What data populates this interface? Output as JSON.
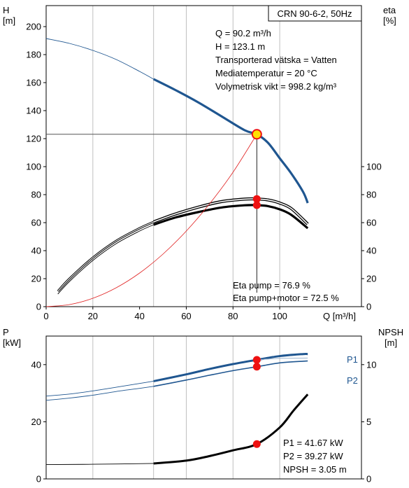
{
  "colors": {
    "head_curve": "#1f5690",
    "p_curves": "#1f5690",
    "eta_curves": "#000000",
    "power_curve_red": "#e02020",
    "duty_point_fill": "#ffe000",
    "marker_red": "#ee1111",
    "grid": "#bfbfbf",
    "frame": "#000000"
  },
  "chart_data": [
    {
      "type": "line",
      "panel": "top",
      "title_box": "CRN 90-6-2, 50Hz",
      "ylabel_left": "H",
      "ylabel_left_unit": "[m]",
      "ylabel_right": "eta",
      "ylabel_right_unit": "[%]",
      "xlabel": "Q [m³/h]",
      "xlim": [
        0,
        135
      ],
      "ylim_left": [
        0,
        215
      ],
      "ylim_right": [
        0,
        215
      ],
      "x_ticks": [
        0,
        20,
        40,
        60,
        80,
        100
      ],
      "y_ticks_left": [
        0,
        20,
        40,
        60,
        80,
        100,
        120,
        140,
        160,
        180,
        200
      ],
      "y_ticks_right": [
        0,
        20,
        40,
        60,
        80,
        100
      ],
      "grid": "vertical",
      "info_lines": [
        "Q = 90.2 m³/h",
        "H = 123.1 m",
        "Transporterad vätska = Vatten",
        "Mediatemperatur = 20 °C",
        "Volymetrisk vikt = 998.2 kg/m³"
      ],
      "eta_lines": [
        "Eta pump = 76.9 %",
        "Eta pump+motor = 72.5 %"
      ],
      "duty_point": {
        "x": 90.2,
        "y": 123.1
      },
      "eta_markers": [
        76.9,
        72.5
      ],
      "series": [
        {
          "role": "head_thin",
          "x": [
            0,
            10,
            20,
            30,
            40,
            46
          ],
          "y": [
            191.5,
            188,
            183,
            176.5,
            168,
            162.5
          ]
        },
        {
          "role": "head_thick",
          "x": [
            46,
            55,
            65,
            75,
            85,
            90.2,
            95,
            100,
            105,
            110,
            112
          ],
          "y": [
            162.5,
            155,
            146,
            136,
            126,
            123.1,
            117,
            106,
            95,
            82,
            74
          ]
        },
        {
          "role": "eta_pump_thin",
          "x": [
            5,
            10,
            20,
            30,
            40,
            46
          ],
          "y": [
            11,
            20,
            35,
            47,
            56,
            60.5
          ]
        },
        {
          "role": "eta_pump_thick",
          "x": [
            46,
            55,
            65,
            75,
            85,
            90.2,
            95,
            100,
            105,
            112
          ],
          "y": [
            60.5,
            66,
            71,
            75,
            76.8,
            76.9,
            76.2,
            74,
            70,
            59
          ]
        },
        {
          "role": "eta_total_thin",
          "x": [
            5,
            10,
            20,
            30,
            40,
            46
          ],
          "y": [
            9,
            18,
            33,
            45,
            54,
            58.5
          ]
        },
        {
          "role": "eta_total_thick",
          "x": [
            46,
            55,
            65,
            75,
            85,
            90.2,
            95,
            100,
            105,
            112
          ],
          "y": [
            58.5,
            63.5,
            67.5,
            70.8,
            72.4,
            72.5,
            71.8,
            69.5,
            65.5,
            56
          ]
        },
        {
          "role": "system_curve",
          "x": [
            0,
            10,
            20,
            30,
            40,
            50,
            60,
            70,
            80,
            90.2
          ],
          "y": [
            0,
            1.5,
            6,
            13.5,
            24,
            37.5,
            54,
            73.5,
            96,
            123.1
          ]
        }
      ]
    },
    {
      "type": "line",
      "panel": "bottom",
      "ylabel_left": "P",
      "ylabel_left_unit": "[kW]",
      "ylabel_right": "NPSH",
      "ylabel_right_unit": "[m]",
      "xlim": [
        0,
        135
      ],
      "ylim_left": [
        0,
        50
      ],
      "ylim_right": [
        0,
        12.5
      ],
      "y_ticks_left": [
        0,
        20,
        40
      ],
      "y_ticks_right": [
        0,
        5,
        10
      ],
      "grid": "vertical",
      "info_lines": [
        "P1 = 41.67 kW",
        "P2 = 39.27 kW",
        "NPSH = 3.05 m"
      ],
      "curve_labels": [
        "P1",
        "P2"
      ],
      "markers": {
        "p1": 41.67,
        "p2": 39.27,
        "npsh": 3.05
      },
      "series": [
        {
          "name": "P1",
          "role": "p1_thin",
          "x": [
            0,
            10,
            20,
            30,
            40,
            46
          ],
          "y": [
            29,
            29.7,
            30.8,
            32.1,
            33.4,
            34.2
          ]
        },
        {
          "name": "P1",
          "role": "p1_thick",
          "x": [
            46,
            60,
            70,
            80,
            90.2,
            100,
            110,
            112
          ],
          "y": [
            34.2,
            36.6,
            38.5,
            40.2,
            41.67,
            43,
            43.7,
            43.7
          ]
        },
        {
          "name": "P2",
          "role": "p2_thin",
          "x": [
            0,
            10,
            20,
            30,
            40,
            46
          ],
          "y": [
            27.5,
            28.3,
            29.3,
            30.6,
            31.7,
            32.4
          ]
        },
        {
          "name": "P2",
          "role": "p2_thick",
          "x": [
            46,
            60,
            70,
            80,
            90.2,
            100,
            110,
            112
          ],
          "y": [
            32.4,
            34.6,
            36.3,
            37.9,
            39.27,
            40.6,
            41.2,
            41.3
          ]
        },
        {
          "name": "P1",
          "role": "p1_ext",
          "x": [
            90.2,
            100,
            112
          ],
          "y": [
            41.67,
            42.2,
            42.3
          ]
        },
        {
          "role": "npsh_thin",
          "x": [
            0,
            20,
            46
          ],
          "y": [
            1.25,
            1.28,
            1.35
          ]
        },
        {
          "role": "npsh_thick",
          "x": [
            46,
            60,
            70,
            80,
            90.2,
            100,
            106,
            112
          ],
          "y": [
            1.35,
            1.6,
            2.0,
            2.5,
            3.05,
            4.5,
            6,
            7.4
          ]
        }
      ]
    }
  ]
}
